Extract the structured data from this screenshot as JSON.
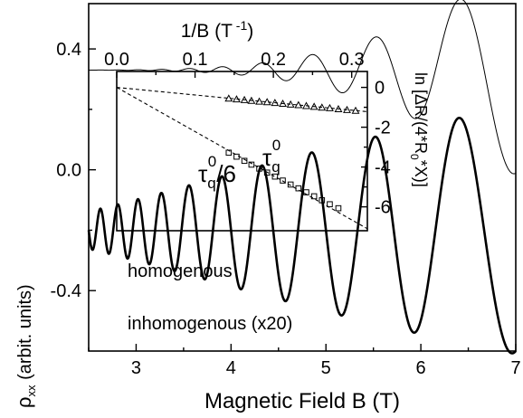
{
  "chart_data": [
    {
      "type": "line",
      "xlabel": "Magnetic Field B (T)",
      "ylabel": "ρxx (arbit. units)",
      "ylabel_main": "ρ",
      "ylabel_sub": "xx",
      "ylabel_rest": " (arbit. units)",
      "xlim": [
        2.5,
        7.0
      ],
      "ylim": [
        -0.6,
        0.55
      ],
      "x_ticks": [
        3,
        4,
        5,
        6,
        7
      ],
      "y_ticks": [
        -0.4,
        0.0,
        0.4
      ],
      "x_tick_labels": [
        "3",
        "4",
        "5",
        "6",
        "7"
      ],
      "y_tick_labels": [
        "-0.4",
        "0.0",
        "0.4"
      ],
      "grid": false,
      "series": [
        {
          "name": "homogenous",
          "model": "oscillation",
          "baseline": 0.33,
          "envelope_amplitude": 0.35,
          "envelope_decay": 0.62,
          "frequency_T": 40.0,
          "line_width": "thin"
        },
        {
          "name": "inhomogenous (x20)",
          "model": "oscillation",
          "baseline": -0.2,
          "envelope_amplitude": 0.41,
          "envelope_decay": 0.15,
          "frequency_T": 40.0,
          "line_width": "thick"
        }
      ]
    },
    {
      "type": "scatter",
      "role": "inset",
      "xlabel": "1/B (T -1)",
      "xlabel_main": "1/B (T",
      "xlabel_sup": " -1",
      "xlabel_close": ")",
      "ylabel": "ln [ΔR/(4*R0*X)]",
      "ylabel_pre": "ln [ΔR/(4*R",
      "ylabel_sub": "0",
      "ylabel_post": "*X)]",
      "xlim": [
        0.0,
        0.32
      ],
      "ylim": [
        -7.2,
        0.8
      ],
      "x_ticks": [
        0.0,
        0.1,
        0.2,
        0.3
      ],
      "y_ticks": [
        0,
        -2,
        -4,
        -6
      ],
      "x_tick_labels": [
        "0.0",
        "0.1",
        "0.2",
        "0.3"
      ],
      "y_tick_labels": [
        "0",
        "-2",
        "-4",
        "-6"
      ],
      "x_axis_position": "top",
      "y_axis_position": "right",
      "series": [
        {
          "name": "τq0",
          "label_main": "τ",
          "label_sub": "q",
          "label_sup": "0",
          "label_suffix": "",
          "marker": "triangle",
          "x": [
            0.143,
            0.153,
            0.163,
            0.172,
            0.182,
            0.192,
            0.202,
            0.212,
            0.222,
            0.232,
            0.242,
            0.252,
            0.262,
            0.272,
            0.283,
            0.294,
            0.305
          ],
          "y": [
            -0.56,
            -0.6,
            -0.63,
            -0.67,
            -0.71,
            -0.74,
            -0.78,
            -0.82,
            -0.86,
            -0.89,
            -0.93,
            -0.97,
            -1.01,
            -1.04,
            -1.09,
            -1.13,
            -1.17
          ],
          "fit_line": {
            "x": [
              0.0,
              0.32
            ],
            "y": [
              0.0,
              -1.22
            ]
          }
        },
        {
          "name": "τq0/6",
          "label_main": "τ",
          "label_sub": "q",
          "label_sup": "0",
          "label_suffix": "/6",
          "marker": "square",
          "x": [
            0.143,
            0.153,
            0.163,
            0.172,
            0.182,
            0.192,
            0.202,
            0.212,
            0.222,
            0.232,
            0.242,
            0.252,
            0.262,
            0.272,
            0.283
          ],
          "y": [
            -3.28,
            -3.48,
            -3.69,
            -3.88,
            -4.08,
            -4.28,
            -4.48,
            -4.68,
            -4.88,
            -5.07,
            -5.27,
            -5.47,
            -5.67,
            -5.87,
            -6.07
          ],
          "fit_line": {
            "x": [
              0.0,
              0.32
            ],
            "y": [
              0.0,
              -7.1
            ]
          }
        }
      ]
    }
  ]
}
